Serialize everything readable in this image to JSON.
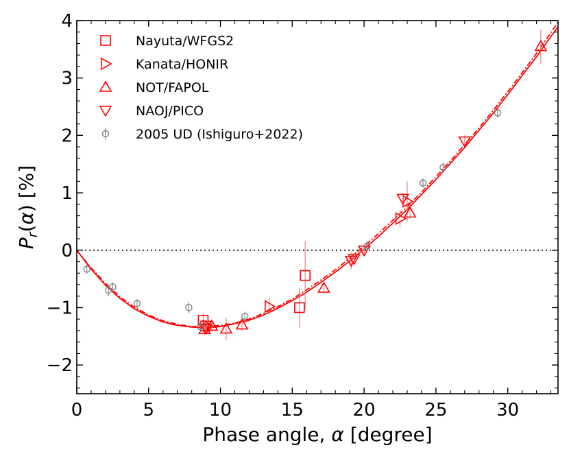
{
  "chart_data": {
    "type": "scatter",
    "xlabel_text": "Phase angle, ",
    "xlabel_sym": "α",
    "xlabel_unit": " [degree]",
    "ylabel_P": "P",
    "ylabel_sub": "r",
    "ylabel_rest_open": "(",
    "ylabel_alpha": "α",
    "ylabel_rest_close": ") [%]",
    "xlim": [
      0,
      33.5
    ],
    "ylim": [
      -2.5,
      4.0
    ],
    "xticks": [
      0,
      5,
      10,
      15,
      20,
      25,
      30
    ],
    "yticks": [
      -2,
      -1,
      0,
      1,
      2,
      3,
      4
    ],
    "xtick_labels": [
      "0",
      "5",
      "10",
      "15",
      "20",
      "25",
      "30"
    ],
    "ytick_labels": [
      "−2",
      "−1",
      "0",
      "1",
      "2",
      "3",
      "4"
    ],
    "zero_line": true,
    "legend_position": "top-left",
    "colors": {
      "red": "#ff0000",
      "gray": "#808080"
    },
    "series": [
      {
        "name": "Nayuta/WFGS2",
        "marker": "square",
        "color": "#ff0000",
        "points": [
          {
            "x": 8.8,
            "y": -1.22,
            "err": 0.12
          },
          {
            "x": 8.95,
            "y": -1.32,
            "err": 0.1
          },
          {
            "x": 15.5,
            "y": -1.0,
            "err": 0.35
          },
          {
            "x": 15.9,
            "y": -0.44,
            "err": 0.6
          }
        ]
      },
      {
        "name": "Kanata/HONIR",
        "marker": "triangle-right",
        "color": "#ff0000",
        "points": [
          {
            "x": 9.1,
            "y": -1.32,
            "err": 0.1
          },
          {
            "x": 13.4,
            "y": -0.98,
            "err": 0.15
          },
          {
            "x": 22.5,
            "y": 0.55,
            "err": 0.15
          },
          {
            "x": 23.0,
            "y": 0.85,
            "err": 0.35
          }
        ]
      },
      {
        "name": "NOT/FAPOL",
        "marker": "triangle-up",
        "color": "#ff0000",
        "points": [
          {
            "x": 8.9,
            "y": -1.38,
            "err": 0.1
          },
          {
            "x": 9.4,
            "y": -1.32,
            "err": 0.1
          },
          {
            "x": 10.4,
            "y": -1.37,
            "err": 0.2
          },
          {
            "x": 11.5,
            "y": -1.3,
            "err": 0.1
          },
          {
            "x": 17.2,
            "y": -0.66,
            "err": 0.1
          },
          {
            "x": 23.2,
            "y": 0.65,
            "err": 0.1
          },
          {
            "x": 32.3,
            "y": 3.55,
            "err": 0.3
          }
        ]
      },
      {
        "name": "NAOJ/PICO",
        "marker": "triangle-down",
        "color": "#ff0000",
        "points": [
          {
            "x": 9.0,
            "y": -1.36,
            "err": 0.1
          },
          {
            "x": 19.1,
            "y": -0.18,
            "err": 0.15
          },
          {
            "x": 19.3,
            "y": -0.15,
            "err": 0.1
          },
          {
            "x": 20.0,
            "y": 0.0,
            "err": 0.1
          },
          {
            "x": 22.7,
            "y": 0.9,
            "err": 0.1
          },
          {
            "x": 27.0,
            "y": 1.9,
            "err": 0.1
          }
        ]
      },
      {
        "name": "2005 UD (Ishiguro+2022)",
        "marker": "circle",
        "color": "#808080",
        "points": [
          {
            "x": 0.7,
            "y": -0.33,
            "err": 0.08
          },
          {
            "x": 2.2,
            "y": -0.7,
            "err": 0.1
          },
          {
            "x": 2.5,
            "y": -0.64,
            "err": 0.08
          },
          {
            "x": 4.2,
            "y": -0.93,
            "err": 0.08
          },
          {
            "x": 7.8,
            "y": -1.0,
            "err": 0.1
          },
          {
            "x": 8.6,
            "y": -1.33,
            "err": 0.1
          },
          {
            "x": 11.7,
            "y": -1.15,
            "err": 0.08
          },
          {
            "x": 20.2,
            "y": 0.07,
            "err": 0.08
          },
          {
            "x": 24.1,
            "y": 1.17,
            "err": 0.08
          },
          {
            "x": 25.5,
            "y": 1.44,
            "err": 0.08
          },
          {
            "x": 29.3,
            "y": 2.39,
            "err": 0.08
          }
        ]
      }
    ],
    "fit_curves": [
      {
        "style": "solid",
        "color": "#ff0000",
        "x": [
          0,
          1,
          2,
          3,
          4,
          5,
          6,
          7,
          8,
          9,
          10,
          11,
          12,
          13,
          14,
          15,
          16,
          17,
          18,
          19,
          20,
          21,
          22,
          23,
          24,
          25,
          26,
          27,
          28,
          29,
          30,
          31,
          32,
          33,
          33.5
        ],
        "y": [
          0.0,
          -0.33,
          -0.61,
          -0.84,
          -1.02,
          -1.15,
          -1.25,
          -1.31,
          -1.34,
          -1.35,
          -1.33,
          -1.28,
          -1.22,
          -1.13,
          -1.01,
          -0.88,
          -0.73,
          -0.56,
          -0.38,
          -0.19,
          0.02,
          0.24,
          0.47,
          0.71,
          0.97,
          1.23,
          1.51,
          1.79,
          2.09,
          2.39,
          2.71,
          3.04,
          3.37,
          3.72,
          3.89
        ]
      },
      {
        "style": "dashdot",
        "color": "#ff0000",
        "x": [
          0,
          1,
          2,
          3,
          4,
          5,
          6,
          7,
          8,
          9,
          10,
          11,
          12,
          13,
          14,
          15,
          16,
          17,
          18,
          19,
          20,
          21,
          22,
          23,
          24,
          25,
          26,
          27,
          28,
          29,
          30,
          31,
          32,
          33,
          33.5
        ],
        "y": [
          0.0,
          -0.31,
          -0.58,
          -0.81,
          -0.99,
          -1.13,
          -1.23,
          -1.29,
          -1.33,
          -1.33,
          -1.31,
          -1.27,
          -1.2,
          -1.1,
          -0.98,
          -0.85,
          -0.69,
          -0.52,
          -0.34,
          -0.14,
          0.07,
          0.29,
          0.52,
          0.76,
          1.01,
          1.28,
          1.55,
          1.84,
          2.13,
          2.44,
          2.76,
          3.09,
          3.43,
          3.79,
          3.97
        ]
      }
    ]
  }
}
